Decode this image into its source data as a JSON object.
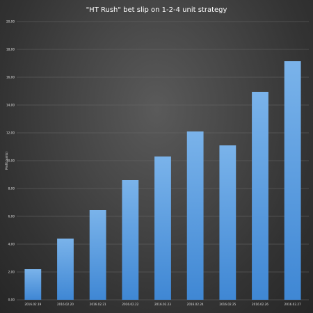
{
  "chart_data": {
    "type": "bar",
    "title": "\"HT Rush\" bet slip on 1-2-4 unit strategy",
    "xlabel": "",
    "ylabel": "Profit (units)",
    "categories": [
      "2016.02.19",
      "2016.02.20",
      "2016.02.21",
      "2016.02.22",
      "2016.02.23",
      "2016.02.24",
      "2016.02.25",
      "2016.02.26",
      "2016.02.27"
    ],
    "values": [
      2.2,
      4.4,
      6.45,
      8.6,
      10.3,
      12.1,
      11.1,
      14.95,
      17.15
    ],
    "ylim": [
      0,
      20
    ],
    "yticks": [
      "0,00",
      "2,00",
      "4,00",
      "6,00",
      "8,00",
      "10,00",
      "12,00",
      "14,00",
      "16,00",
      "18,00",
      "20,00"
    ],
    "grid": true,
    "legend": "none",
    "colors": {
      "bar_light": "#7ab3ea",
      "bar_dark": "#3f87d4",
      "grid": "#6a6a6a",
      "text": "#e0e0e0",
      "title": "#ffffff"
    }
  }
}
